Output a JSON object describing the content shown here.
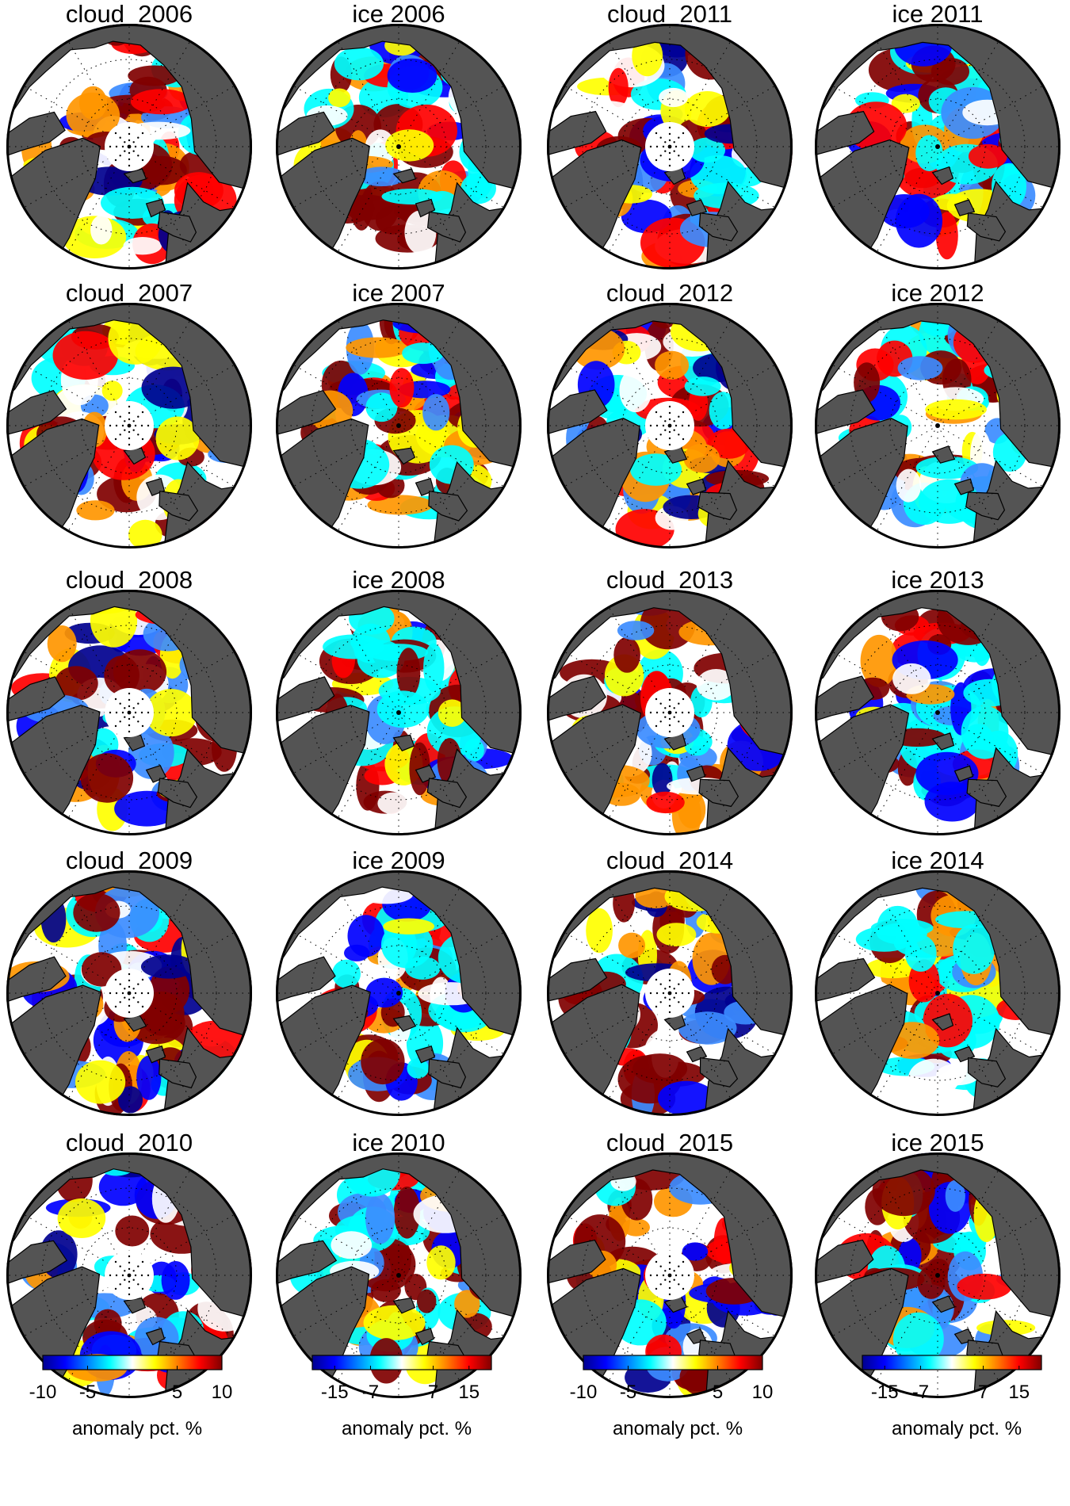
{
  "chart_data": {
    "type": "heatmap",
    "colors": {
      "land": "#545454",
      "ocean_nodata": "#ffffff",
      "outline": "#000000",
      "colormap": [
        "#00008f",
        "#0000ff",
        "#3c8cff",
        "#00ffff",
        "#ffffff",
        "#ffff00",
        "#ff9600",
        "#ff0000",
        "#800000"
      ]
    },
    "panels": [
      {
        "title": "cloud  2006",
        "kind": "cloud",
        "year": 2006
      },
      {
        "title": "ice 2006",
        "kind": "ice",
        "year": 2006
      },
      {
        "title": "cloud  2011",
        "kind": "cloud",
        "year": 2011
      },
      {
        "title": "ice 2011",
        "kind": "ice",
        "year": 2011
      },
      {
        "title": "cloud  2007",
        "kind": "cloud",
        "year": 2007
      },
      {
        "title": "ice 2007",
        "kind": "ice",
        "year": 2007
      },
      {
        "title": "cloud  2012",
        "kind": "cloud",
        "year": 2012
      },
      {
        "title": "ice 2012",
        "kind": "ice",
        "year": 2012
      },
      {
        "title": "cloud  2008",
        "kind": "cloud",
        "year": 2008
      },
      {
        "title": "ice 2008",
        "kind": "ice",
        "year": 2008
      },
      {
        "title": "cloud  2013",
        "kind": "cloud",
        "year": 2013
      },
      {
        "title": "ice 2013",
        "kind": "ice",
        "year": 2013
      },
      {
        "title": "cloud  2009",
        "kind": "cloud",
        "year": 2009
      },
      {
        "title": "ice 2009",
        "kind": "ice",
        "year": 2009
      },
      {
        "title": "cloud  2014",
        "kind": "cloud",
        "year": 2014
      },
      {
        "title": "ice 2014",
        "kind": "ice",
        "year": 2014
      },
      {
        "title": "cloud  2010",
        "kind": "cloud",
        "year": 2010
      },
      {
        "title": "ice 2010",
        "kind": "ice",
        "year": 2010
      },
      {
        "title": "cloud  2015",
        "kind": "cloud",
        "year": 2015
      },
      {
        "title": "ice 2015",
        "kind": "ice",
        "year": 2015
      }
    ],
    "colorbars": [
      {
        "kind": "cloud",
        "range": [
          -10,
          10
        ],
        "ticks": [
          -10,
          -5,
          5,
          10
        ],
        "tick_labels": [
          "-10",
          "-5",
          "5",
          "10"
        ],
        "label": "anomaly pct. %"
      },
      {
        "kind": "ice",
        "range": [
          -20,
          20
        ],
        "ticks": [
          -15,
          -7,
          7,
          15
        ],
        "tick_labels": [
          "-15",
          "-7",
          "7",
          "15"
        ],
        "label": "anomaly pct. %"
      },
      {
        "kind": "cloud",
        "range": [
          -10,
          10
        ],
        "ticks": [
          -10,
          -5,
          5,
          10
        ],
        "tick_labels": [
          "-10",
          "-5",
          "5",
          "10"
        ],
        "label": "anomaly pct. %"
      },
      {
        "kind": "ice",
        "range": [
          -20,
          20
        ],
        "ticks": [
          -15,
          -7,
          7,
          15
        ],
        "tick_labels": [
          "-15",
          "-7",
          "7",
          "15"
        ],
        "label": "anomaly pct. %"
      }
    ]
  }
}
